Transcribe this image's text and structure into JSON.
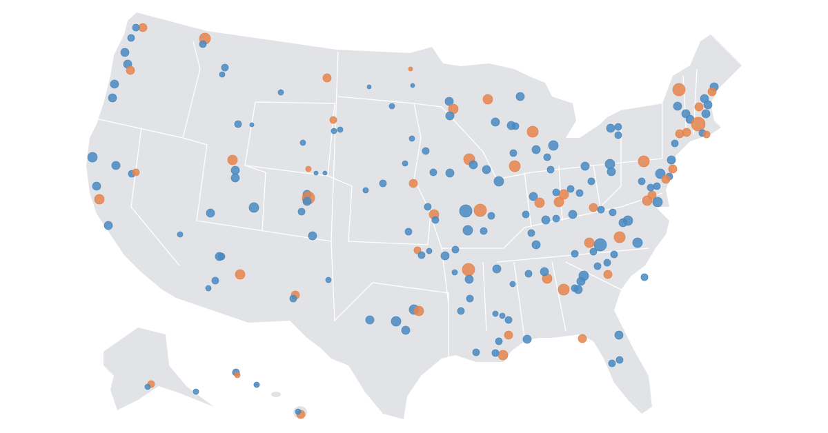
{
  "map": {
    "land_color": "#e2e3e6",
    "dot_colors": [
      "#4a8ac0",
      "#e5844c"
    ]
  }
}
